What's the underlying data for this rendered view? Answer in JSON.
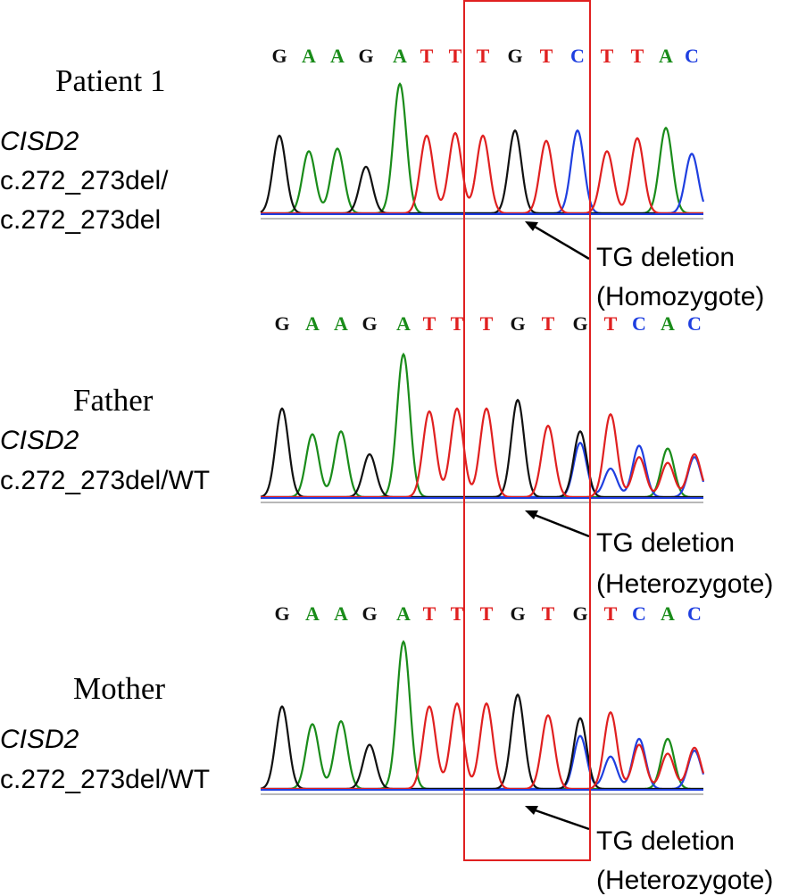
{
  "colors": {
    "A": "#1a8c1a",
    "C": "#1f3fe0",
    "G": "#111111",
    "T": "#e02020",
    "box": "#e02020",
    "baseline": "#1f3fe0"
  },
  "panels": [
    {
      "name": "Patient 1",
      "gene": "CISD2",
      "genotype_lines": [
        "c.272_273del/",
        "c.272_273del"
      ],
      "sequence": [
        "G",
        "A",
        "A",
        "G",
        "A",
        "T",
        "T",
        "T",
        "G",
        "T",
        "C",
        "T",
        "T",
        "A",
        "C"
      ],
      "callout_lines": [
        "TG deletion",
        "(Homozygote)"
      ],
      "trace": {
        "peaks": [
          {
            "base": "G",
            "height": 0.6
          },
          {
            "base": "A",
            "height": 0.48
          },
          {
            "base": "A",
            "height": 0.5
          },
          {
            "base": "G",
            "height": 0.36
          },
          {
            "base": "A",
            "height": 1.0
          },
          {
            "base": "T",
            "height": 0.6
          },
          {
            "base": "T",
            "height": 0.62
          },
          {
            "base": "T",
            "height": 0.6
          },
          {
            "base": "G",
            "height": 0.64
          },
          {
            "base": "T",
            "height": 0.56
          },
          {
            "base": "C",
            "height": 0.64
          },
          {
            "base": "T",
            "height": 0.48
          },
          {
            "base": "T",
            "height": 0.58
          },
          {
            "base": "A",
            "height": 0.66
          },
          {
            "base": "C",
            "height": 0.46
          }
        ],
        "secondary": []
      }
    },
    {
      "name": "Father",
      "gene": "CISD2",
      "genotype_lines": [
        "c.272_273del/WT"
      ],
      "sequence": [
        "G",
        "A",
        "A",
        "G",
        "A",
        "T",
        "T",
        "T",
        "G",
        "T",
        "G",
        "T",
        "C",
        "A",
        "C"
      ],
      "callout_lines": [
        "TG deletion",
        "(Heterozygote)"
      ],
      "trace": {
        "peaks": [
          {
            "base": "G",
            "height": 0.62
          },
          {
            "base": "A",
            "height": 0.44
          },
          {
            "base": "A",
            "height": 0.46
          },
          {
            "base": "G",
            "height": 0.3
          },
          {
            "base": "A",
            "height": 1.0
          },
          {
            "base": "T",
            "height": 0.6
          },
          {
            "base": "T",
            "height": 0.62
          },
          {
            "base": "T",
            "height": 0.62
          },
          {
            "base": "G",
            "height": 0.68
          },
          {
            "base": "T",
            "height": 0.5
          },
          {
            "base": "G",
            "height": 0.46
          },
          {
            "base": "T",
            "height": 0.58
          },
          {
            "base": "C",
            "height": 0.36
          },
          {
            "base": "A",
            "height": 0.34
          },
          {
            "base": "C",
            "height": 0.28
          }
        ],
        "secondary": [
          {
            "pos": 10,
            "base": "C",
            "height": 0.38
          },
          {
            "pos": 11,
            "base": "C",
            "height": 0.2
          },
          {
            "pos": 12,
            "base": "T",
            "height": 0.28
          },
          {
            "pos": 13,
            "base": "T",
            "height": 0.24
          },
          {
            "pos": 14,
            "base": "T",
            "height": 0.3
          }
        ]
      }
    },
    {
      "name": "Mother",
      "gene": "CISD2",
      "genotype_lines": [
        "c.272_273del/WT"
      ],
      "sequence": [
        "G",
        "A",
        "A",
        "G",
        "A",
        "T",
        "T",
        "T",
        "G",
        "T",
        "G",
        "T",
        "C",
        "A",
        "C"
      ],
      "callout_lines": [
        "TG deletion",
        "(Heterozygote)"
      ],
      "trace": {
        "peaks": [
          {
            "base": "G",
            "height": 0.56
          },
          {
            "base": "A",
            "height": 0.44
          },
          {
            "base": "A",
            "height": 0.46
          },
          {
            "base": "G",
            "height": 0.3
          },
          {
            "base": "A",
            "height": 1.0
          },
          {
            "base": "T",
            "height": 0.56
          },
          {
            "base": "T",
            "height": 0.58
          },
          {
            "base": "T",
            "height": 0.58
          },
          {
            "base": "G",
            "height": 0.64
          },
          {
            "base": "T",
            "height": 0.5
          },
          {
            "base": "G",
            "height": 0.48
          },
          {
            "base": "T",
            "height": 0.52
          },
          {
            "base": "C",
            "height": 0.34
          },
          {
            "base": "A",
            "height": 0.34
          },
          {
            "base": "C",
            "height": 0.26
          }
        ],
        "secondary": [
          {
            "pos": 10,
            "base": "C",
            "height": 0.36
          },
          {
            "pos": 11,
            "base": "C",
            "height": 0.22
          },
          {
            "pos": 12,
            "base": "T",
            "height": 0.3
          },
          {
            "pos": 13,
            "base": "T",
            "height": 0.24
          },
          {
            "pos": 14,
            "base": "T",
            "height": 0.28
          }
        ]
      }
    }
  ]
}
